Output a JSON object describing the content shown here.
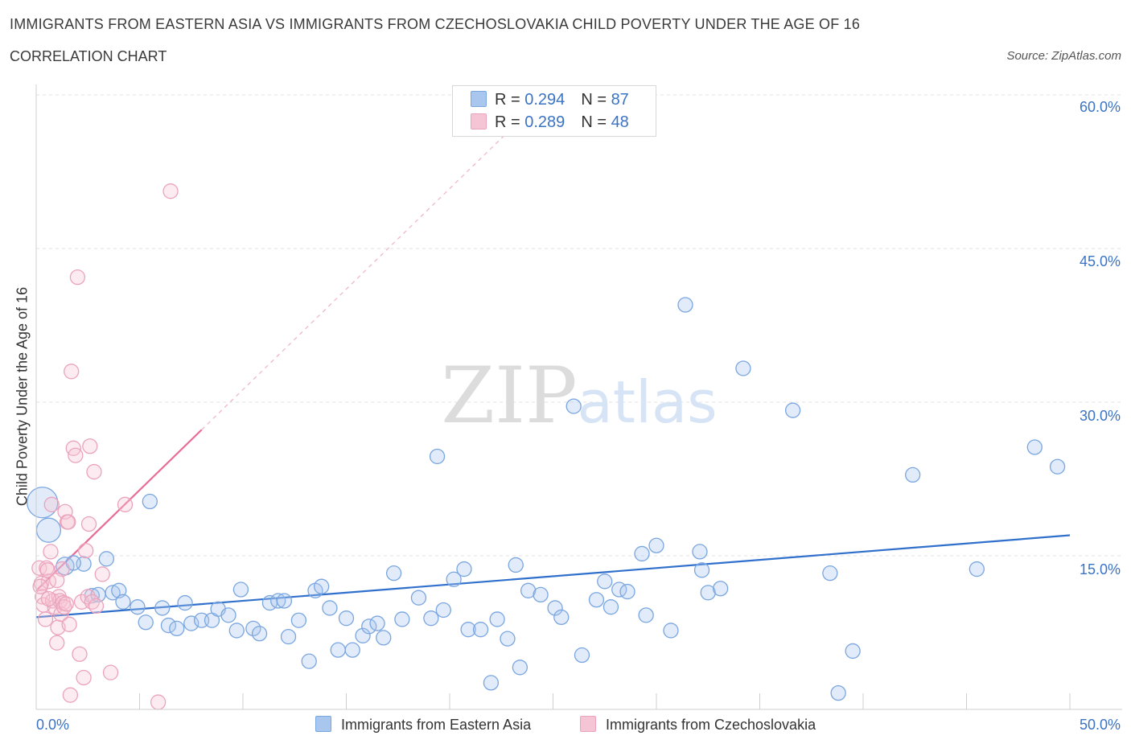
{
  "chart_data": {
    "type": "scatter",
    "title": "IMMIGRANTS FROM EASTERN ASIA VS IMMIGRANTS FROM CZECHOSLOVAKIA CHILD POVERTY UNDER THE AGE OF 16",
    "subtitle": "CORRELATION CHART",
    "source": "Source: ZipAtlas.com",
    "xlabel": "",
    "ylabel": "Child Poverty Under the Age of 16",
    "xlim": [
      0,
      50
    ],
    "ylim": [
      0,
      60
    ],
    "x_tick_labels": [
      "0.0%",
      "50.0%"
    ],
    "y_ticks": [
      15,
      30,
      45,
      60
    ],
    "y_tick_labels": [
      "15.0%",
      "30.0%",
      "45.0%",
      "60.0%"
    ],
    "watermark": "ZIPatlas",
    "legend": {
      "rows": [
        {
          "r_label": "R = ",
          "r_value": "0.294",
          "n_label": "N = ",
          "n_value": "87"
        },
        {
          "r_label": "R = ",
          "r_value": "0.289",
          "n_label": "N = ",
          "n_value": "48"
        }
      ]
    },
    "series": [
      {
        "name": "Immigrants from Eastern Asia",
        "color": "#7aa6e0",
        "fill": "#a9c6ef",
        "line_color": "#3070cc",
        "trend": {
          "x": [
            0,
            50
          ],
          "y": [
            9.0,
            17.0
          ],
          "dashed_x": null
        },
        "points": [
          [
            0.3,
            20.2
          ],
          [
            0.6,
            17.5
          ],
          [
            1.4,
            14.0
          ],
          [
            2.3,
            14.2
          ],
          [
            1.8,
            14.3
          ],
          [
            3.4,
            14.7
          ],
          [
            5.5,
            20.3
          ],
          [
            2.7,
            11.1
          ],
          [
            3.0,
            11.2
          ],
          [
            3.7,
            11.4
          ],
          [
            4.0,
            11.6
          ],
          [
            4.2,
            10.5
          ],
          [
            4.9,
            10.0
          ],
          [
            5.3,
            8.5
          ],
          [
            6.1,
            9.9
          ],
          [
            6.4,
            8.2
          ],
          [
            6.8,
            7.9
          ],
          [
            7.2,
            10.4
          ],
          [
            7.5,
            8.4
          ],
          [
            8.0,
            8.7
          ],
          [
            8.5,
            8.7
          ],
          [
            8.8,
            9.8
          ],
          [
            9.3,
            9.2
          ],
          [
            9.7,
            7.7
          ],
          [
            9.9,
            11.7
          ],
          [
            10.5,
            7.9
          ],
          [
            10.8,
            7.4
          ],
          [
            11.3,
            10.4
          ],
          [
            11.7,
            10.6
          ],
          [
            12.0,
            10.6
          ],
          [
            12.2,
            7.1
          ],
          [
            12.7,
            8.7
          ],
          [
            13.2,
            4.7
          ],
          [
            13.5,
            11.6
          ],
          [
            13.8,
            12.0
          ],
          [
            14.2,
            9.9
          ],
          [
            14.6,
            5.8
          ],
          [
            15.0,
            8.9
          ],
          [
            15.3,
            5.8
          ],
          [
            15.8,
            7.2
          ],
          [
            16.1,
            8.1
          ],
          [
            16.5,
            8.4
          ],
          [
            16.8,
            7.0
          ],
          [
            17.3,
            13.3
          ],
          [
            17.7,
            8.8
          ],
          [
            18.5,
            10.9
          ],
          [
            19.1,
            8.9
          ],
          [
            19.4,
            24.7
          ],
          [
            19.7,
            9.7
          ],
          [
            20.2,
            12.7
          ],
          [
            20.7,
            13.7
          ],
          [
            20.9,
            7.8
          ],
          [
            21.5,
            7.8
          ],
          [
            22.0,
            2.6
          ],
          [
            22.3,
            8.8
          ],
          [
            22.8,
            6.9
          ],
          [
            23.2,
            14.1
          ],
          [
            23.4,
            4.1
          ],
          [
            23.8,
            11.6
          ],
          [
            24.4,
            11.2
          ],
          [
            25.1,
            9.9
          ],
          [
            25.4,
            9.0
          ],
          [
            26.0,
            29.6
          ],
          [
            26.4,
            5.3
          ],
          [
            27.1,
            10.7
          ],
          [
            27.5,
            12.5
          ],
          [
            27.8,
            10.0
          ],
          [
            28.2,
            11.7
          ],
          [
            28.6,
            11.5
          ],
          [
            29.3,
            15.2
          ],
          [
            29.5,
            9.2
          ],
          [
            30.0,
            16.0
          ],
          [
            30.7,
            7.7
          ],
          [
            31.4,
            39.5
          ],
          [
            32.1,
            15.4
          ],
          [
            32.2,
            13.6
          ],
          [
            32.5,
            11.4
          ],
          [
            33.1,
            11.8
          ],
          [
            34.2,
            33.3
          ],
          [
            36.6,
            29.2
          ],
          [
            38.4,
            13.3
          ],
          [
            38.8,
            1.6
          ],
          [
            39.5,
            5.7
          ],
          [
            42.4,
            22.9
          ],
          [
            45.5,
            13.7
          ],
          [
            48.3,
            25.6
          ],
          [
            49.4,
            23.7
          ]
        ]
      },
      {
        "name": "Immigrants from Czechoslovakia",
        "color": "#eba3bd",
        "fill": "#f6c5d5",
        "line_color": "#e86c97",
        "trend": {
          "x": [
            0,
            8.0
          ],
          "y": [
            11.6,
            27.3
          ],
          "dashed_x": [
            8.0,
            23.0
          ]
        },
        "points": [
          [
            0.15,
            13.8
          ],
          [
            0.25,
            12.3
          ],
          [
            0.3,
            11.0
          ],
          [
            0.35,
            10.2
          ],
          [
            0.45,
            8.8
          ],
          [
            0.5,
            13.8
          ],
          [
            0.6,
            12.5
          ],
          [
            0.7,
            15.4
          ],
          [
            0.75,
            20.0
          ],
          [
            0.8,
            10.6
          ],
          [
            0.9,
            10.0
          ],
          [
            1.0,
            6.5
          ],
          [
            1.05,
            8.0
          ],
          [
            1.1,
            11.0
          ],
          [
            1.15,
            10.6
          ],
          [
            1.2,
            9.3
          ],
          [
            1.25,
            13.7
          ],
          [
            1.3,
            10.4
          ],
          [
            1.35,
            10.0
          ],
          [
            1.4,
            19.3
          ],
          [
            1.5,
            18.3
          ],
          [
            1.55,
            18.3
          ],
          [
            1.6,
            8.3
          ],
          [
            1.65,
            1.4
          ],
          [
            1.7,
            33.0
          ],
          [
            1.8,
            25.5
          ],
          [
            1.9,
            24.8
          ],
          [
            2.0,
            42.2
          ],
          [
            2.1,
            5.4
          ],
          [
            2.2,
            10.5
          ],
          [
            2.3,
            3.1
          ],
          [
            2.4,
            15.5
          ],
          [
            2.5,
            11.0
          ],
          [
            2.55,
            18.1
          ],
          [
            2.6,
            25.7
          ],
          [
            2.7,
            10.5
          ],
          [
            2.8,
            23.2
          ],
          [
            2.9,
            10.1
          ],
          [
            3.2,
            13.2
          ],
          [
            3.6,
            3.6
          ],
          [
            4.3,
            20.0
          ],
          [
            5.9,
            0.7
          ],
          [
            6.5,
            50.6
          ],
          [
            0.2,
            12.0
          ],
          [
            0.55,
            13.6
          ],
          [
            1.0,
            12.6
          ],
          [
            1.45,
            10.3
          ],
          [
            0.6,
            10.8
          ]
        ]
      }
    ]
  }
}
